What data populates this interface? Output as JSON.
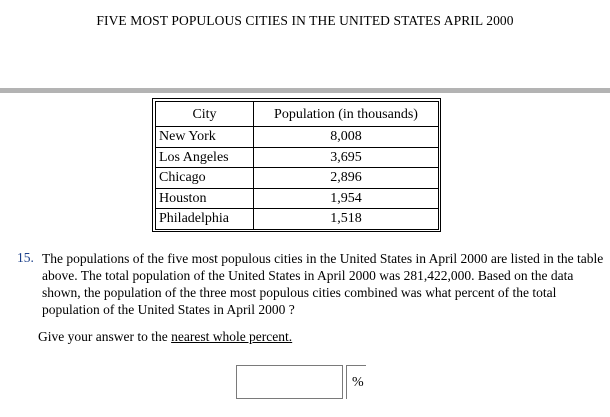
{
  "title": "FIVE MOST POPULOUS CITIES IN THE UNITED STATES APRIL 2000",
  "table": {
    "headers": [
      "City",
      "Population (in thousands)"
    ],
    "rows": [
      {
        "city": "New York",
        "population": "8,008"
      },
      {
        "city": "Los Angeles",
        "population": "3,695"
      },
      {
        "city": "Chicago",
        "population": "2,896"
      },
      {
        "city": "Houston",
        "population": "1,954"
      },
      {
        "city": "Philadelphia",
        "population": "1,518"
      }
    ]
  },
  "question": {
    "number": "15.",
    "text": "The populations of the five most populous cities in the United States in April 2000 are listed in the table above. The total population of the United States in April 2000 was 281,422,000. Based on the data shown, the population of the three most populous cities combined was what percent of the total population of the United States in April 2000 ?",
    "instruction_prefix": "Give your answer to the ",
    "instruction_underlined": "nearest whole percent.",
    "answer_value": "",
    "unit": "%"
  }
}
